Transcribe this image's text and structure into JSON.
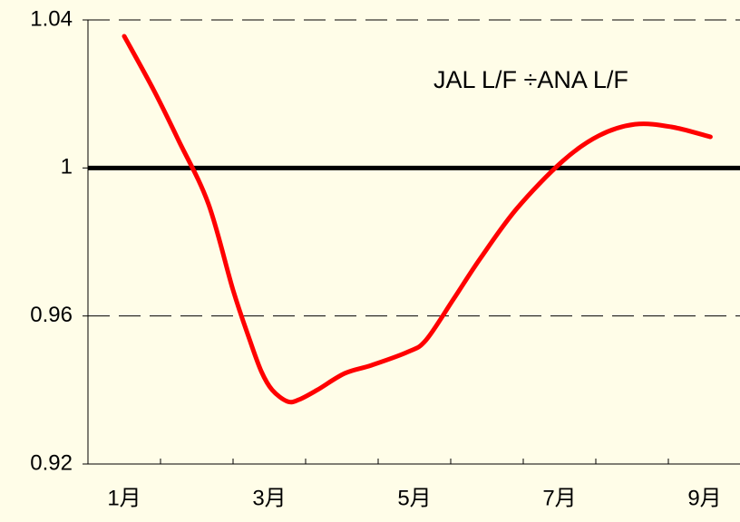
{
  "chart_data": {
    "type": "line",
    "annotation": "JAL L/F ÷ANA L/F",
    "x": [
      1.0,
      1.41,
      1.75,
      2.16,
      2.5,
      2.73,
      2.89,
      3.04,
      3.25,
      3.41,
      3.66,
      4.04,
      4.41,
      4.91,
      5.16,
      5.54,
      5.91,
      6.41,
      7.04,
      7.54,
      8.04,
      8.54,
      9.08
    ],
    "series": [
      {
        "color": "#ff0000",
        "values": [
          1.0356,
          1.0209,
          1.0074,
          0.9903,
          0.967,
          0.9535,
          0.945,
          0.94,
          0.9369,
          0.9374,
          0.94,
          0.9445,
          0.9467,
          0.9503,
          0.9535,
          0.9646,
          0.9756,
          0.989,
          1.0018,
          1.0087,
          1.0118,
          1.0111,
          1.0084
        ]
      }
    ],
    "xlim": [
      0.5,
      9.5
    ],
    "xticks": [
      {
        "value": 1,
        "label": "1月"
      },
      {
        "value": 3,
        "label": "3月"
      },
      {
        "value": 5,
        "label": "5月"
      },
      {
        "value": 7,
        "label": "7月"
      },
      {
        "value": 9,
        "label": "9月"
      }
    ],
    "x_minor_ticks": [
      1.5,
      2.5,
      3.5,
      4.5,
      5.5,
      6.5,
      7.5,
      8.5
    ],
    "ylim": [
      0.92,
      1.04
    ],
    "yticks": [
      0.92,
      0.96,
      1,
      1.04
    ],
    "reference_line": 1,
    "grid": true
  }
}
